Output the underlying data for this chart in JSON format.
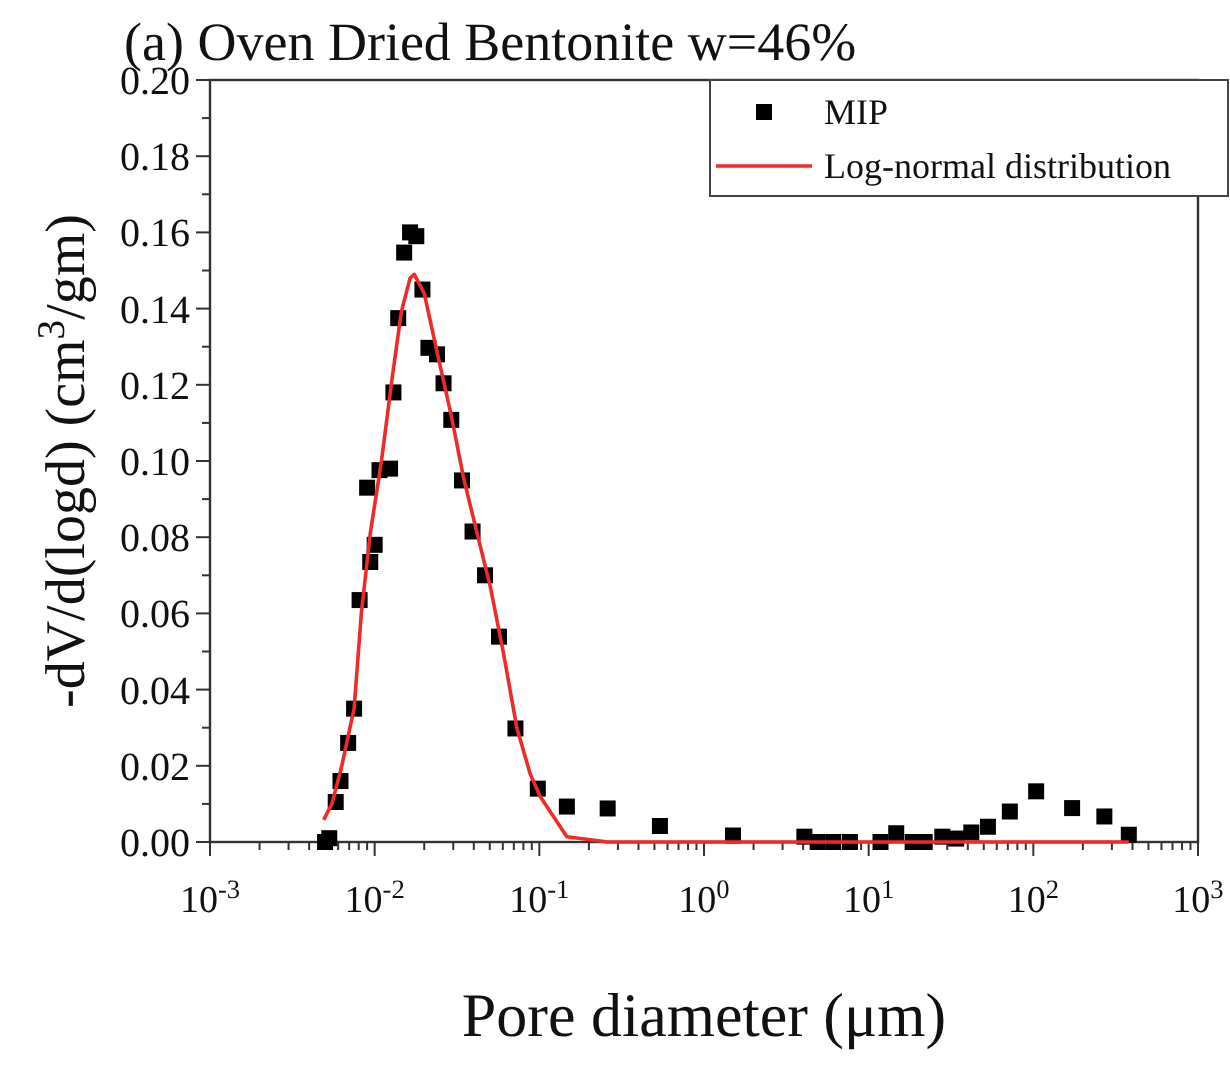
{
  "chart_data": {
    "type": "scatter",
    "title": "(a) Oven Dried Bentonite w=46%",
    "xlabel": "Pore diameter (μm)",
    "ylabel": "-dV/d(logd) (cm$^{3}$/gm)",
    "log": "x",
    "xlim": [
      0.001,
      1000
    ],
    "ylim": [
      0,
      0.2
    ],
    "xticks": [
      {
        "value": 0.001,
        "label": "10$^{-3}$"
      },
      {
        "value": 0.002,
        "label": null
      },
      {
        "value": 0.003,
        "label": null
      },
      {
        "value": 0.004,
        "label": null
      },
      {
        "value": 0.005,
        "label": null
      },
      {
        "value": 0.006,
        "label": null
      },
      {
        "value": 0.007,
        "label": null
      },
      {
        "value": 0.008,
        "label": null
      },
      {
        "value": 0.009,
        "label": null
      },
      {
        "value": 0.01,
        "label": "10$^{-2}$"
      },
      {
        "value": 0.02,
        "label": null
      },
      {
        "value": 0.03,
        "label": null
      },
      {
        "value": 0.04,
        "label": null
      },
      {
        "value": 0.05,
        "label": null
      },
      {
        "value": 0.06,
        "label": null
      },
      {
        "value": 0.07,
        "label": null
      },
      {
        "value": 0.08,
        "label": null
      },
      {
        "value": 0.09,
        "label": null
      },
      {
        "value": 0.1,
        "label": "10$^{-1}$"
      },
      {
        "value": 0.2,
        "label": null
      },
      {
        "value": 0.3,
        "label": null
      },
      {
        "value": 0.4,
        "label": null
      },
      {
        "value": 0.5,
        "label": null
      },
      {
        "value": 0.6,
        "label": null
      },
      {
        "value": 0.7,
        "label": null
      },
      {
        "value": 0.8,
        "label": null
      },
      {
        "value": 0.9,
        "label": null
      },
      {
        "value": 1,
        "label": "10$^{0}$"
      },
      {
        "value": 2,
        "label": null
      },
      {
        "value": 3,
        "label": null
      },
      {
        "value": 4,
        "label": null
      },
      {
        "value": 5,
        "label": null
      },
      {
        "value": 6,
        "label": null
      },
      {
        "value": 7,
        "label": null
      },
      {
        "value": 8,
        "label": null
      },
      {
        "value": 9,
        "label": null
      },
      {
        "value": 10,
        "label": "10$^{1}$"
      },
      {
        "value": 20,
        "label": null
      },
      {
        "value": 30,
        "label": null
      },
      {
        "value": 40,
        "label": null
      },
      {
        "value": 50,
        "label": null
      },
      {
        "value": 60,
        "label": null
      },
      {
        "value": 70,
        "label": null
      },
      {
        "value": 80,
        "label": null
      },
      {
        "value": 90,
        "label": null
      },
      {
        "value": 100,
        "label": "10$^{2}$"
      },
      {
        "value": 200,
        "label": null
      },
      {
        "value": 300,
        "label": null
      },
      {
        "value": 400,
        "label": null
      },
      {
        "value": 500,
        "label": null
      },
      {
        "value": 600,
        "label": null
      },
      {
        "value": 700,
        "label": null
      },
      {
        "value": 800,
        "label": null
      },
      {
        "value": 900,
        "label": null
      },
      {
        "value": 1000,
        "label": "10$^{3}$"
      }
    ],
    "yticks": [
      {
        "value": 0,
        "label": "0.00"
      },
      {
        "value": 0.01,
        "label": null
      },
      {
        "value": 0.02,
        "label": "0.02"
      },
      {
        "value": 0.03,
        "label": null
      },
      {
        "value": 0.04,
        "label": "0.04"
      },
      {
        "value": 0.05,
        "label": null
      },
      {
        "value": 0.06,
        "label": "0.06"
      },
      {
        "value": 0.07,
        "label": null
      },
      {
        "value": 0.08,
        "label": "0.08"
      },
      {
        "value": 0.09,
        "label": null
      },
      {
        "value": 0.1,
        "label": "0.10"
      },
      {
        "value": 0.11,
        "label": null
      },
      {
        "value": 0.12,
        "label": "0.12"
      },
      {
        "value": 0.13,
        "label": null
      },
      {
        "value": 0.14,
        "label": "0.14"
      },
      {
        "value": 0.15,
        "label": null
      },
      {
        "value": 0.16,
        "label": "0.16"
      },
      {
        "value": 0.17,
        "label": null
      },
      {
        "value": 0.18,
        "label": "0.18"
      },
      {
        "value": 0.19,
        "label": null
      },
      {
        "value": 0.2,
        "label": "0.20"
      }
    ],
    "grid": false,
    "legend": "top right",
    "series": [
      {
        "name": "MIP",
        "marker": "square",
        "color": "#000000",
        "x": [
          0.005,
          0.0053,
          0.0058,
          0.0062,
          0.0069,
          0.0075,
          0.0081,
          0.009,
          0.0094,
          0.01,
          0.0107,
          0.0124,
          0.013,
          0.0139,
          0.0151,
          0.0164,
          0.0179,
          0.0195,
          0.0212,
          0.0239,
          0.0262,
          0.0292,
          0.0339,
          0.0393,
          0.0468,
          0.0569,
          0.0716,
          0.0979,
          0.147,
          0.26,
          0.54,
          1.5,
          4.07,
          4.9,
          6.1,
          7.7,
          11.8,
          14.7,
          18.5,
          21.9,
          28,
          34,
          42,
          53,
          72,
          104,
          172,
          270,
          380
        ],
        "values": [
          0.0,
          0.001,
          0.0105,
          0.016,
          0.026,
          0.035,
          0.0635,
          0.093,
          0.0735,
          0.078,
          0.0976,
          0.098,
          0.118,
          0.1375,
          0.1547,
          0.16,
          0.159,
          0.145,
          0.1297,
          0.128,
          0.1204,
          0.1108,
          0.0949,
          0.0815,
          0.07,
          0.0539,
          0.0298,
          0.014,
          0.0093,
          0.0088,
          0.0042,
          0.0017,
          0.0014,
          0.0,
          0.0,
          0.0,
          0.0,
          0.0023,
          0.0,
          0.0,
          0.0014,
          0.0009,
          0.0025,
          0.004,
          0.008,
          0.0133,
          0.0089,
          0.0067,
          0.0019
        ]
      },
      {
        "name": "Log-normal distribution",
        "type": "line",
        "color": "#ee2a2a",
        "x": [
          0.0049,
          0.0055,
          0.0063,
          0.0075,
          0.0083,
          0.0094,
          0.011,
          0.0127,
          0.0145,
          0.0164,
          0.0174,
          0.02,
          0.0241,
          0.029,
          0.0349,
          0.0419,
          0.0504,
          0.0606,
          0.073,
          0.0878,
          0.101,
          0.147,
          0.26,
          1.5,
          10,
          100,
          380
        ],
        "values": [
          0.0058,
          0.01,
          0.0198,
          0.035,
          0.06,
          0.081,
          0.1,
          0.121,
          0.139,
          0.148,
          0.149,
          0.144,
          0.128,
          0.1125,
          0.095,
          0.081,
          0.067,
          0.0495,
          0.03,
          0.018,
          0.012,
          0.0014,
          0,
          0,
          0,
          0,
          0
        ]
      }
    ]
  }
}
